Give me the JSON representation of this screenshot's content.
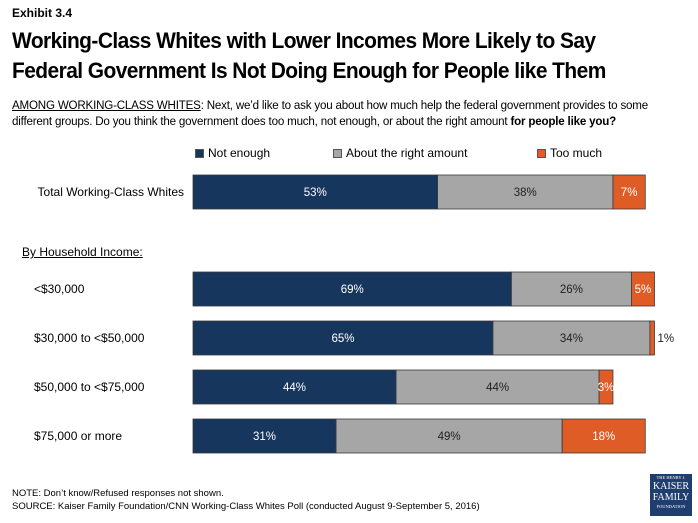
{
  "exhibit": "Exhibit 3.4",
  "title_line1": "Working-Class Whites with Lower Incomes More Likely to Say",
  "title_line2": "Federal Government Is Not Doing Enough for People like Them",
  "subtitle": {
    "lead": "AMONG WORKING-CLASS WHITES",
    "text": ": Next, we’d like to ask you about how much help the federal government provides to some different groups. Do you think the government does too much, not enough, or about the right amount ",
    "bold": "for people like you?"
  },
  "section_label": "By Household Income:",
  "note": "NOTE: Don’t know/Refused responses not shown.",
  "source": "SOURCE: Kaiser Family Foundation/CNN Working-Class Whites Poll (conducted August 9-September 5, 2016)",
  "logo": {
    "line1": "THE HENRY J.",
    "line2": "KAISER",
    "line3": "FAMILY",
    "line4": "FOUNDATION"
  },
  "colors": {
    "not_enough": "#17365d",
    "right_amount": "#a6a6a6",
    "too_much": "#e05c27"
  },
  "chart_data": {
    "type": "bar",
    "orientation": "horizontal-stacked",
    "title": "Working-Class Whites with Lower Incomes More Likely to Say Federal Government Is Not Doing Enough for People like Them",
    "legend_position": "top",
    "categories": [
      "Total Working-Class Whites",
      "<$30,000",
      "$30,000 to <$50,000",
      "$50,000 to <$75,000",
      "$75,000 or more"
    ],
    "series": [
      {
        "name": "Not enough",
        "values": [
          53,
          69,
          65,
          44,
          31
        ],
        "labels": [
          "53%",
          "69%",
          "65%",
          "44%",
          "31%"
        ]
      },
      {
        "name": "About the right amount",
        "values": [
          38,
          26,
          34,
          44,
          49
        ],
        "labels": [
          "38%",
          "26%",
          "34%",
          "44%",
          "49%"
        ]
      },
      {
        "name": "Too much",
        "values": [
          7,
          5,
          1,
          3,
          18
        ],
        "labels": [
          "7%",
          "5%",
          "1%",
          "3%",
          "18%"
        ]
      }
    ],
    "xlim": [
      0,
      100
    ],
    "grid": false
  }
}
